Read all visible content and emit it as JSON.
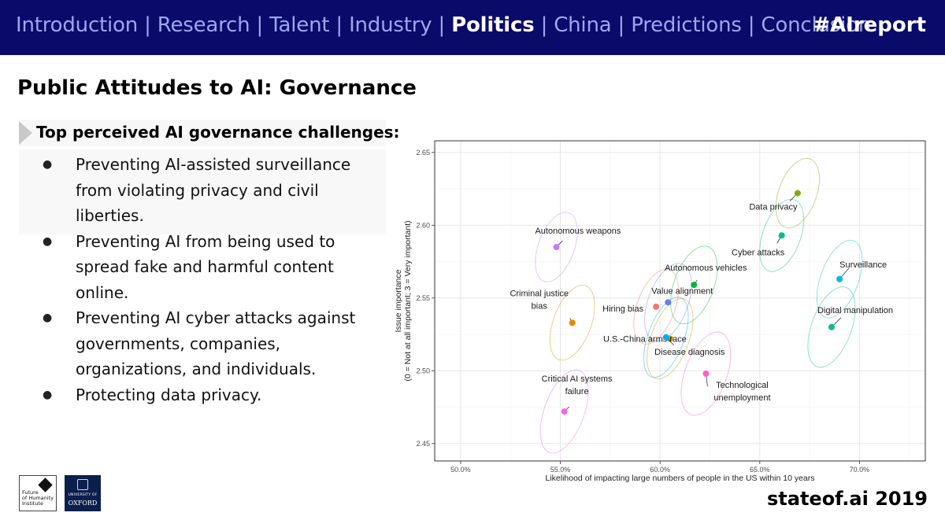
{
  "header": {
    "nav": [
      {
        "label": "Introduction",
        "active": false
      },
      {
        "label": "Research",
        "active": false
      },
      {
        "label": "Talent",
        "active": false
      },
      {
        "label": "Industry",
        "active": false
      },
      {
        "label": "Politics",
        "active": true
      },
      {
        "label": "China",
        "active": false
      },
      {
        "label": "Predictions",
        "active": false
      },
      {
        "label": "Conclusion",
        "active": false
      }
    ],
    "separator": "|",
    "hashtag": "#AIreport"
  },
  "slide": {
    "title": "Public Attitudes to AI: Governance",
    "subheading": "Top perceived AI governance challenges:",
    "bullets": [
      "Preventing AI-assisted surveillance from violating privacy and civil liberties.",
      "Preventing AI from being used to spread fake and harmful content online.",
      "Preventing AI cyber attacks against governments, companies, organizations, and individuals.",
      "Protecting data privacy."
    ]
  },
  "footer": {
    "brand": "stateof.ai 2019",
    "logo_fhi_text": [
      "Future",
      "of Humanity",
      "Institute"
    ],
    "logo_oxford_small": "UNIVERSITY OF",
    "logo_oxford_big": "OXFORD"
  },
  "chart_data": {
    "type": "scatter",
    "title": "",
    "xlabel": "Likelihood of impacting large numbers of people in the US within 10 years",
    "ylabel": [
      "Issue importance",
      "(0 = Not at all important; 3 = Very important)"
    ],
    "xlim": [
      0.487,
      0.733
    ],
    "ylim": [
      0.438,
      2.658
    ],
    "ylim_actual": [
      2.438,
      2.658
    ],
    "xticks": [
      0.5,
      0.55,
      0.6,
      0.65,
      0.7
    ],
    "xtick_labels": [
      "50.0%",
      "55.0%",
      "60.0%",
      "65.0%",
      "70.0%"
    ],
    "yticks": [
      2.45,
      2.5,
      2.55,
      2.6,
      2.65
    ],
    "ytick_labels": [
      "2.45",
      "2.50",
      "2.55",
      "2.60",
      "2.65"
    ],
    "grid": true,
    "points": [
      {
        "name": "Autonomous weapons",
        "label_lines": [
          "Autonomous weapons"
        ],
        "x": 0.548,
        "y": 2.585,
        "color": "#c77cff",
        "ell_w": 0.018,
        "ell_h": 0.05
      },
      {
        "name": "Criminal justice bias",
        "label_lines": [
          "Criminal justice",
          "bias"
        ],
        "x": 0.556,
        "y": 2.533,
        "color": "#e18a00",
        "ell_w": 0.019,
        "ell_h": 0.054
      },
      {
        "name": "Critical AI systems failure",
        "label_lines": [
          "Critical AI systems",
          "failure"
        ],
        "x": 0.552,
        "y": 2.472,
        "color": "#f564e3",
        "ell_w": 0.02,
        "ell_h": 0.06
      },
      {
        "name": "Hiring bias",
        "label_lines": [
          "Hiring bias"
        ],
        "x": 0.598,
        "y": 2.544,
        "color": "#f8766d",
        "ell_w": 0.019,
        "ell_h": 0.054
      },
      {
        "name": "Value alignment",
        "label_lines": [
          "Value alignment"
        ],
        "x": 0.604,
        "y": 2.547,
        "color": "#6f7cf0",
        "ell_w": 0.02,
        "ell_h": 0.056
      },
      {
        "name": "U.S.-China arms race",
        "label_lines": [
          "U.S.-China arms race"
        ],
        "x": 0.605,
        "y": 2.522,
        "color": "#c49a00",
        "ell_w": 0.019,
        "ell_h": 0.058
      },
      {
        "name": "Disease diagnosis",
        "label_lines": [
          "Disease diagnosis"
        ],
        "x": 0.603,
        "y": 2.523,
        "color": "#00a9ff",
        "ell_w": 0.018,
        "ell_h": 0.058
      },
      {
        "name": "Autonomous vehicles",
        "label_lines": [
          "Autonomous vehicles"
        ],
        "x": 0.617,
        "y": 2.559,
        "color": "#00ba38",
        "ell_w": 0.02,
        "ell_h": 0.056
      },
      {
        "name": "Technological unemployment",
        "label_lines": [
          "Technological",
          "unemployment"
        ],
        "x": 0.623,
        "y": 2.498,
        "color": "#ff61c3",
        "ell_w": 0.021,
        "ell_h": 0.06
      },
      {
        "name": "Data privacy",
        "label_lines": [
          "Data privacy"
        ],
        "x": 0.669,
        "y": 2.622,
        "color": "#7cae00",
        "ell_w": 0.019,
        "ell_h": 0.05
      },
      {
        "name": "Cyber attacks",
        "label_lines": [
          "Cyber attacks"
        ],
        "x": 0.661,
        "y": 2.593,
        "color": "#00bf7d",
        "ell_w": 0.019,
        "ell_h": 0.052
      },
      {
        "name": "Surveillance",
        "label_lines": [
          "Surveillance"
        ],
        "x": 0.69,
        "y": 2.563,
        "color": "#00bcd8",
        "ell_w": 0.019,
        "ell_h": 0.056
      },
      {
        "name": "Digital manipulation",
        "label_lines": [
          "Digital manipulation"
        ],
        "x": 0.686,
        "y": 2.53,
        "color": "#00c08b",
        "ell_w": 0.02,
        "ell_h": 0.058
      }
    ]
  }
}
